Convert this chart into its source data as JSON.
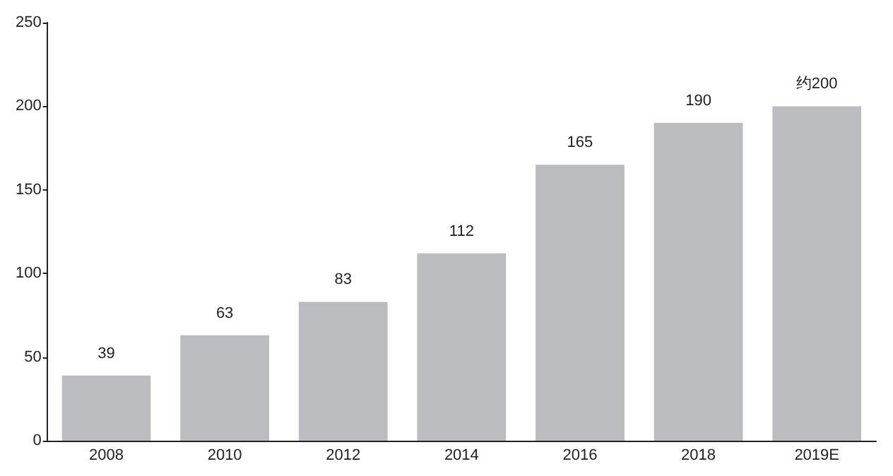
{
  "chart_data": {
    "type": "bar",
    "categories": [
      "2008",
      "2010",
      "2012",
      "2014",
      "2016",
      "2018",
      "2019E"
    ],
    "values": [
      39,
      63,
      83,
      112,
      165,
      190,
      200
    ],
    "color": "#bbbcc0",
    "value_labels": [
      "39",
      "63",
      "83",
      "112",
      "165",
      "190",
      "约200"
    ],
    "ylim": [
      0,
      250
    ],
    "yticks": [
      0,
      50,
      100,
      150,
      200,
      250
    ],
    "grid": false
  }
}
